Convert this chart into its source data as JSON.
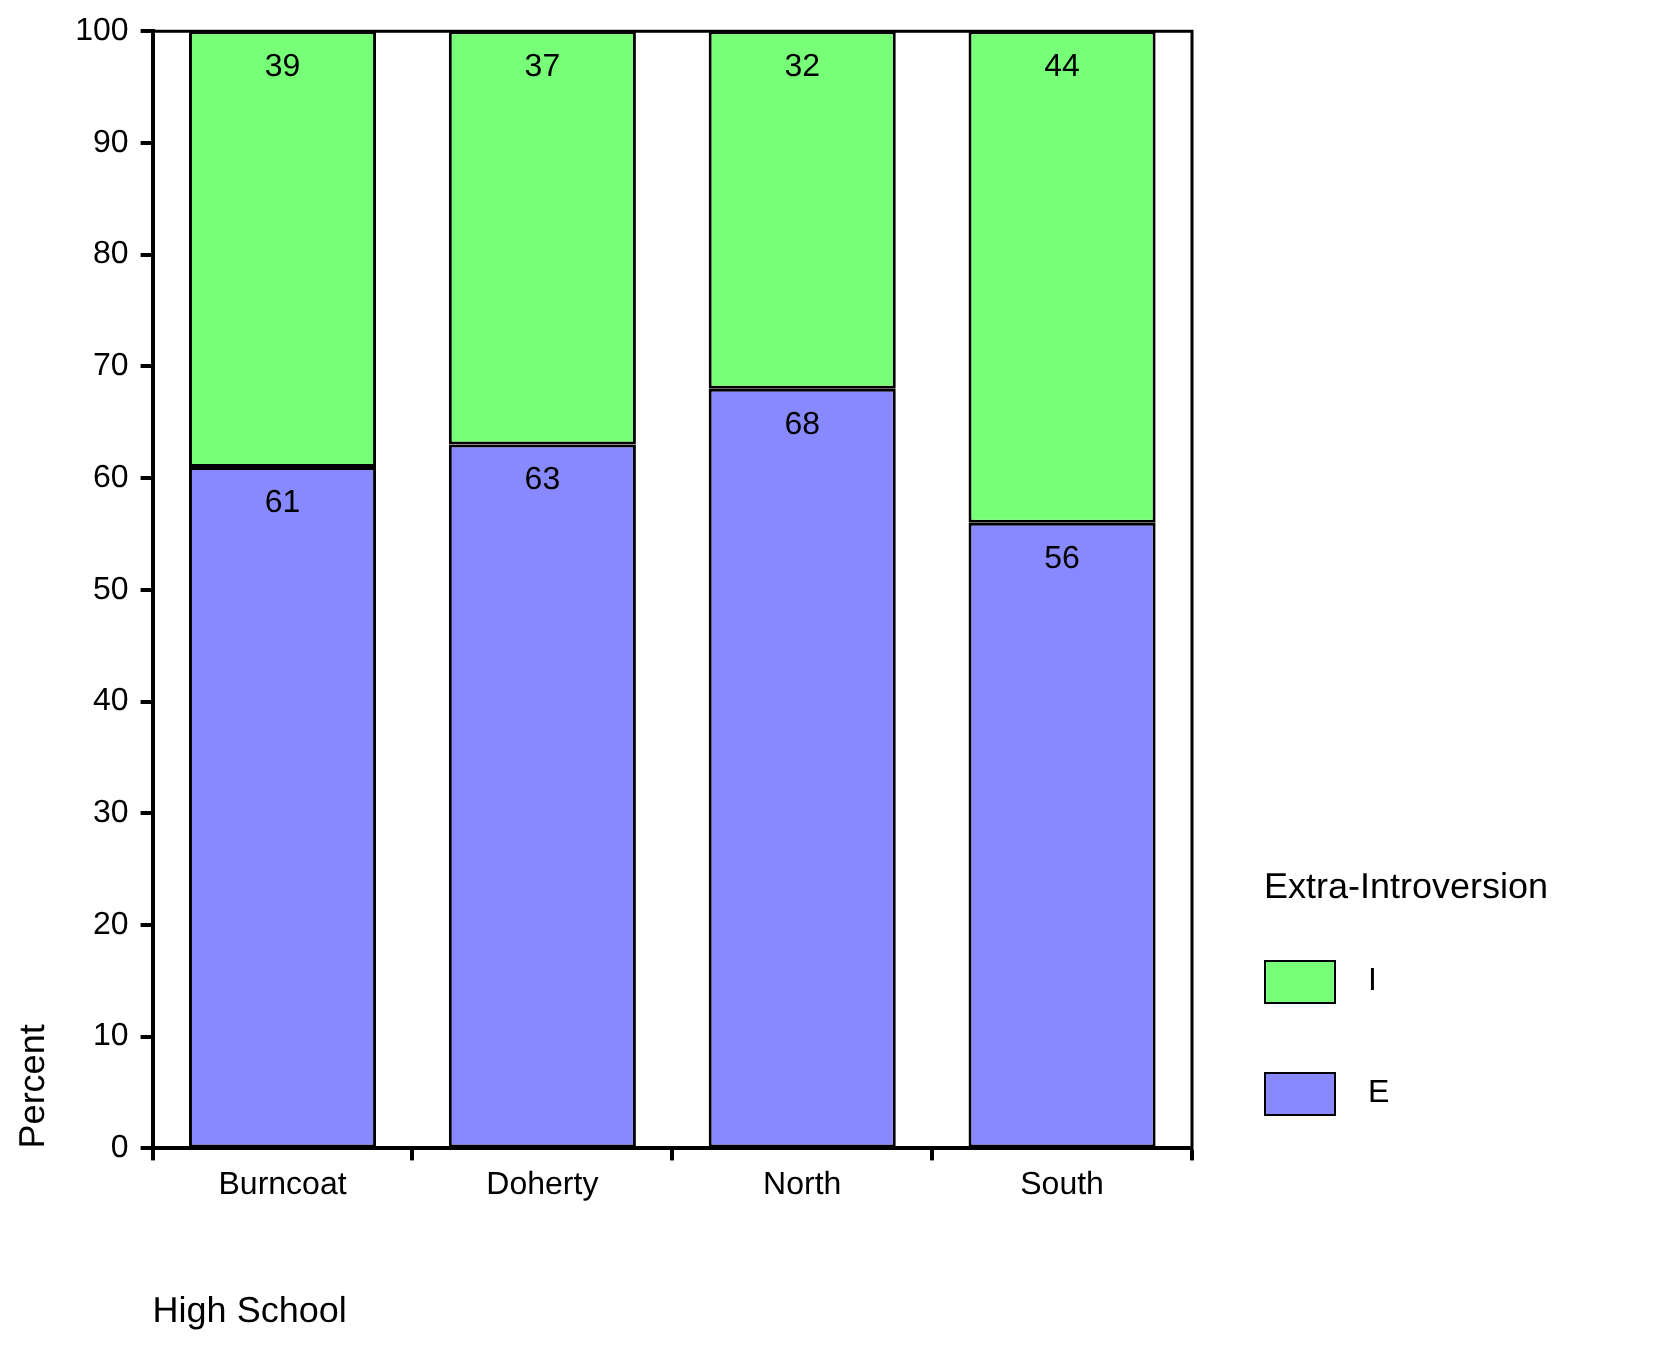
{
  "chart_data": {
    "type": "bar",
    "stacked": true,
    "xlabel": "High School",
    "ylabel": "Percent",
    "legend_title": "Extra-Introversion",
    "categories": [
      "Burncoat",
      "Doherty",
      "North",
      "South"
    ],
    "series": [
      {
        "name": "E",
        "color": "#8888ff",
        "values": [
          61,
          63,
          68,
          56
        ]
      },
      {
        "name": "I",
        "color": "#77ff77",
        "values": [
          39,
          37,
          32,
          44
        ]
      }
    ],
    "ylim": [
      0,
      100
    ],
    "yticks": [
      0,
      10,
      20,
      30,
      40,
      50,
      60,
      70,
      80,
      90,
      100
    ],
    "grid": false,
    "legend": "right",
    "data_labels": true
  }
}
